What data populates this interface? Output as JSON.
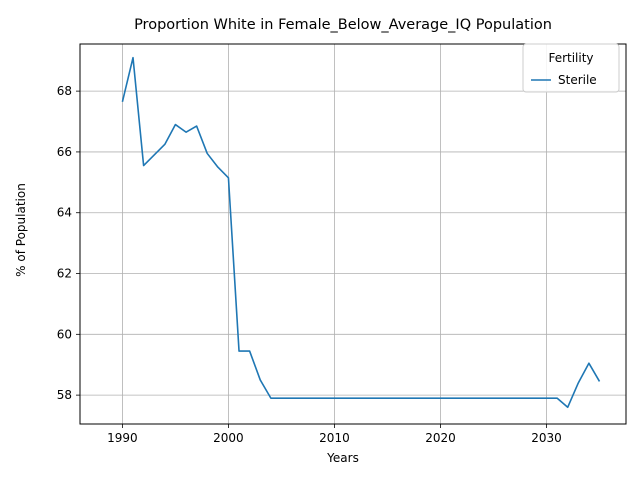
{
  "chart_data": {
    "type": "line",
    "title": "Proportion White in Female_Below_Average_IQ Population",
    "xlabel": "Years",
    "ylabel": "% of Population",
    "xlim": [
      1986,
      2037.5
    ],
    "ylim": [
      57.05,
      69.55
    ],
    "xticks": [
      1990,
      2000,
      2010,
      2020,
      2030
    ],
    "yticks": [
      58,
      60,
      62,
      64,
      66,
      68
    ],
    "grid": true,
    "legend": {
      "title": "Fertility",
      "placement": "top-right"
    },
    "series": [
      {
        "name": "Sterile",
        "color": "#1f77b4",
        "x": [
          1990,
          1991,
          1992,
          1993,
          1994,
          1995,
          1996,
          1997,
          1998,
          1999,
          2000,
          2001,
          2002,
          2003,
          2004,
          2005,
          2006,
          2007,
          2008,
          2009,
          2010,
          2011,
          2012,
          2013,
          2014,
          2015,
          2016,
          2017,
          2018,
          2019,
          2020,
          2021,
          2022,
          2023,
          2024,
          2025,
          2026,
          2027,
          2028,
          2029,
          2030,
          2031,
          2032,
          2033,
          2034,
          2035
        ],
        "y": [
          67.65,
          69.1,
          65.55,
          65.9,
          66.25,
          66.9,
          66.65,
          66.85,
          65.95,
          65.5,
          65.15,
          59.45,
          59.45,
          58.5,
          57.9,
          57.9,
          57.9,
          57.9,
          57.9,
          57.9,
          57.9,
          57.9,
          57.9,
          57.9,
          57.9,
          57.9,
          57.9,
          57.9,
          57.9,
          57.9,
          57.9,
          57.9,
          57.9,
          57.9,
          57.9,
          57.9,
          57.9,
          57.9,
          57.9,
          57.9,
          57.9,
          57.9,
          57.6,
          58.4,
          59.05,
          58.45
        ]
      }
    ]
  }
}
